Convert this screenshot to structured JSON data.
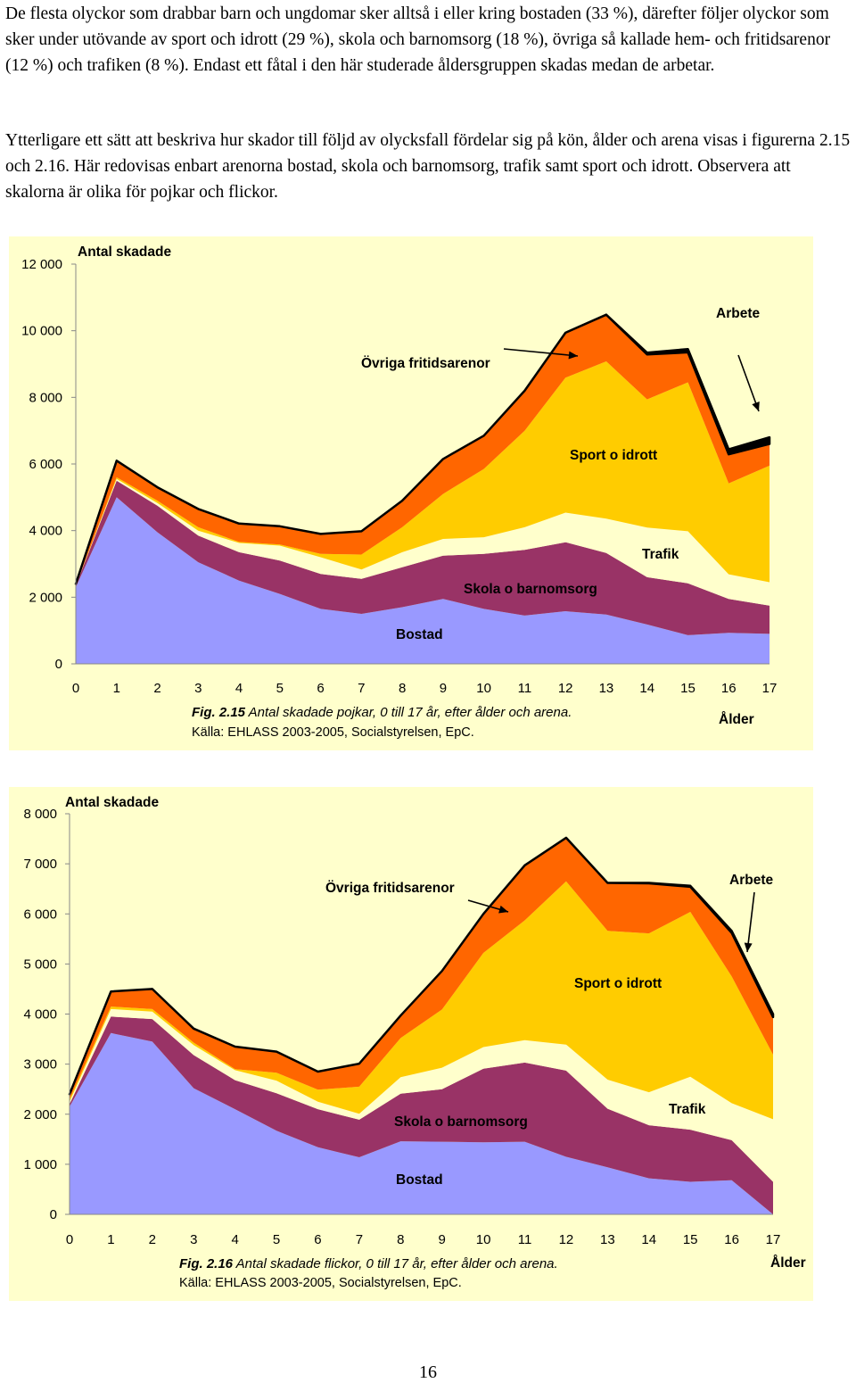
{
  "body_text": {
    "paragraph_1": "De flesta olyckor som drabbar barn och ungdomar sker alltså i eller kring bostaden (33 %), därefter följer olyckor som sker under utövande av sport och idrott (29 %), skola och barnomsorg (18 %), övriga så kallade hem- och fritidsarenor (12 %) och trafiken (8 %). Endast ett fåtal i den här studerade åldersgruppen skadas medan de arbetar.",
    "paragraph_2": "Ytterligare ett sätt att beskriva hur skador till följd av olycksfall fördelar sig på kön, ålder och arena visas i figurerna 2.15 och 2.16. Här redovisas enbart arenorna bostad, skola och barnomsorg, trafik samt sport och idrott. Observera att skalorna är olika för pojkar och flickor.",
    "page_number": "16"
  },
  "colors": {
    "bostad": "#9999ff",
    "skola": "#993366",
    "trafik": "#ffffcc",
    "sport": "#ffcc00",
    "ovriga": "#ff6600",
    "arbete": "#000000",
    "plot_background": "#ffffcc"
  },
  "chart_data": [
    {
      "type": "area",
      "stacked": true,
      "ylabel": "Antal skadade",
      "xlabel": "Ålder",
      "x": [
        0,
        1,
        2,
        3,
        4,
        5,
        6,
        7,
        8,
        9,
        10,
        11,
        12,
        13,
        14,
        15,
        16,
        17
      ],
      "ylim": [
        0,
        12000
      ],
      "yticks": [
        0,
        2000,
        4000,
        6000,
        8000,
        10000,
        12000
      ],
      "ytick_labels": [
        "0",
        "2 000",
        "4 000",
        "6 000",
        "8 000",
        "10 000",
        "12 000"
      ],
      "series": [
        {
          "key": "bostad",
          "name": "Bostad",
          "values": [
            2300,
            5000,
            3950,
            3050,
            2500,
            2100,
            1650,
            1500,
            1700,
            1950,
            1650,
            1450,
            1580,
            1480,
            1180,
            860,
            930,
            900
          ]
        },
        {
          "key": "skola",
          "name": "Skola o barnomsorg",
          "values": [
            50,
            500,
            800,
            800,
            850,
            1000,
            1050,
            1050,
            1200,
            1300,
            1650,
            1970,
            2070,
            1850,
            1420,
            1560,
            1020,
            850
          ]
        },
        {
          "key": "trafik",
          "name": "Trafik",
          "values": [
            0,
            50,
            80,
            150,
            280,
            450,
            500,
            280,
            450,
            500,
            500,
            680,
            890,
            1030,
            1490,
            1560,
            740,
            700
          ]
        },
        {
          "key": "sport",
          "name": "Sport o idrott",
          "values": [
            0,
            50,
            70,
            100,
            30,
            30,
            100,
            450,
            750,
            1350,
            2050,
            2900,
            4050,
            4720,
            3850,
            4470,
            2730,
            3500
          ]
        },
        {
          "key": "ovriga",
          "name": "Övriga fritidsarenor",
          "values": [
            50,
            500,
            400,
            550,
            550,
            550,
            600,
            700,
            800,
            1050,
            1000,
            1200,
            1350,
            1400,
            1350,
            900,
            870,
            650
          ]
        },
        {
          "key": "arbete",
          "name": "Arbete",
          "values": [
            0,
            0,
            0,
            0,
            0,
            0,
            0,
            0,
            0,
            0,
            0,
            0,
            0,
            0,
            50,
            100,
            150,
            200
          ]
        }
      ],
      "caption_bold": "Fig. 2.15",
      "caption_text": " Antal skadade pojkar, 0 till 17 år, efter ålder och arena.",
      "source": "Källa: EHLASS 2003-2005, Socialstyrelsen, EpC."
    },
    {
      "type": "area",
      "stacked": true,
      "ylabel": "Antal skadade",
      "xlabel": "Ålder",
      "x": [
        0,
        1,
        2,
        3,
        4,
        5,
        6,
        7,
        8,
        9,
        10,
        11,
        12,
        13,
        14,
        15,
        16,
        17
      ],
      "ylim": [
        0,
        8000
      ],
      "yticks": [
        0,
        1000,
        2000,
        3000,
        4000,
        5000,
        6000,
        7000,
        8000
      ],
      "ytick_labels": [
        "0",
        "1 000",
        "2 000",
        "3 000",
        "4 000",
        "5 000",
        "6 000",
        "7 000",
        "8 000"
      ],
      "series": [
        {
          "key": "bostad",
          "name": "Bostad",
          "values": [
            2150,
            3620,
            3450,
            2520,
            2100,
            1670,
            1340,
            1140,
            1460,
            1450,
            1440,
            1450,
            1150,
            940,
            720,
            650,
            680,
            0
          ]
        },
        {
          "key": "skola",
          "name": "Skola o barnomsorg",
          "values": [
            50,
            330,
            450,
            660,
            580,
            750,
            760,
            750,
            950,
            1050,
            1470,
            1580,
            1720,
            1170,
            1060,
            1040,
            800,
            650
          ]
        },
        {
          "key": "trafik",
          "name": "Trafik",
          "values": [
            50,
            150,
            150,
            200,
            200,
            250,
            150,
            120,
            330,
            430,
            430,
            450,
            520,
            580,
            660,
            1060,
            740,
            1250
          ]
        },
        {
          "key": "sport",
          "name": "Sport o idrott",
          "values": [
            50,
            50,
            50,
            50,
            20,
            160,
            240,
            540,
            780,
            1160,
            1880,
            2390,
            3260,
            2970,
            3170,
            3290,
            2530,
            1290
          ]
        },
        {
          "key": "ovriga",
          "name": "Övriga fritidsarenor",
          "values": [
            100,
            300,
            400,
            280,
            450,
            420,
            360,
            460,
            450,
            770,
            780,
            1100,
            870,
            960,
            1000,
            500,
            870,
            750
          ]
        },
        {
          "key": "arbete",
          "name": "Arbete",
          "values": [
            0,
            0,
            0,
            0,
            0,
            0,
            0,
            0,
            0,
            0,
            0,
            0,
            0,
            0,
            10,
            20,
            40,
            60
          ]
        }
      ],
      "caption_bold": "Fig. 2.16",
      "caption_text": " Antal skadade flickor, 0 till 17 år, efter ålder och arena.",
      "source": "Källa: EHLASS 2003-2005, Socialstyrelsen, EpC."
    }
  ]
}
